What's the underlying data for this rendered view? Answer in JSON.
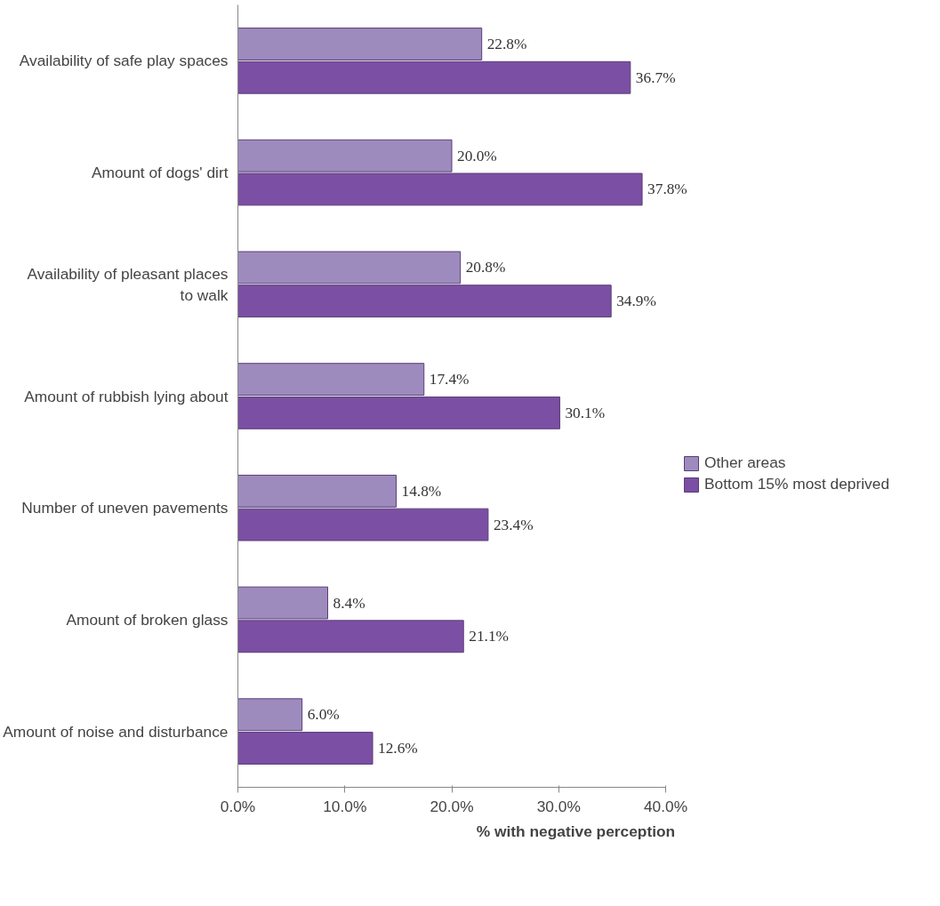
{
  "chart_data": {
    "type": "bar",
    "orientation": "horizontal",
    "xlabel": "% with negative perception",
    "categories": [
      "Availability of safe play spaces",
      "Amount of dogs' dirt",
      "Availability of pleasant places to walk",
      "Amount of rubbish lying about",
      "Number of uneven pavements",
      "Amount of broken glass",
      "Amount of noise and disturbance"
    ],
    "series": [
      {
        "name": "Other areas",
        "color": "#9d8bbd",
        "values": [
          22.8,
          20.0,
          20.8,
          17.4,
          14.8,
          8.4,
          6.0
        ],
        "value_labels": [
          "22.8%",
          "20.0%",
          "20.8%",
          "17.4%",
          "14.8%",
          "8.4%",
          "6.0%"
        ]
      },
      {
        "name": "Bottom 15% most deprived",
        "color": "#7b4fa3",
        "values": [
          36.7,
          37.8,
          34.9,
          30.1,
          23.4,
          21.1,
          12.6
        ],
        "value_labels": [
          "36.7%",
          "37.8%",
          "34.9%",
          "30.1%",
          "23.4%",
          "21.1%",
          "12.6%"
        ]
      }
    ],
    "xlim": [
      0,
      40
    ],
    "xticks": [
      {
        "value": 0,
        "label": "0.0%"
      },
      {
        "value": 10,
        "label": "10.0%"
      },
      {
        "value": 20,
        "label": "20.0%"
      },
      {
        "value": 30,
        "label": "30.0%"
      },
      {
        "value": 40,
        "label": "40.0%"
      }
    ],
    "grid": false,
    "legend": "right"
  }
}
